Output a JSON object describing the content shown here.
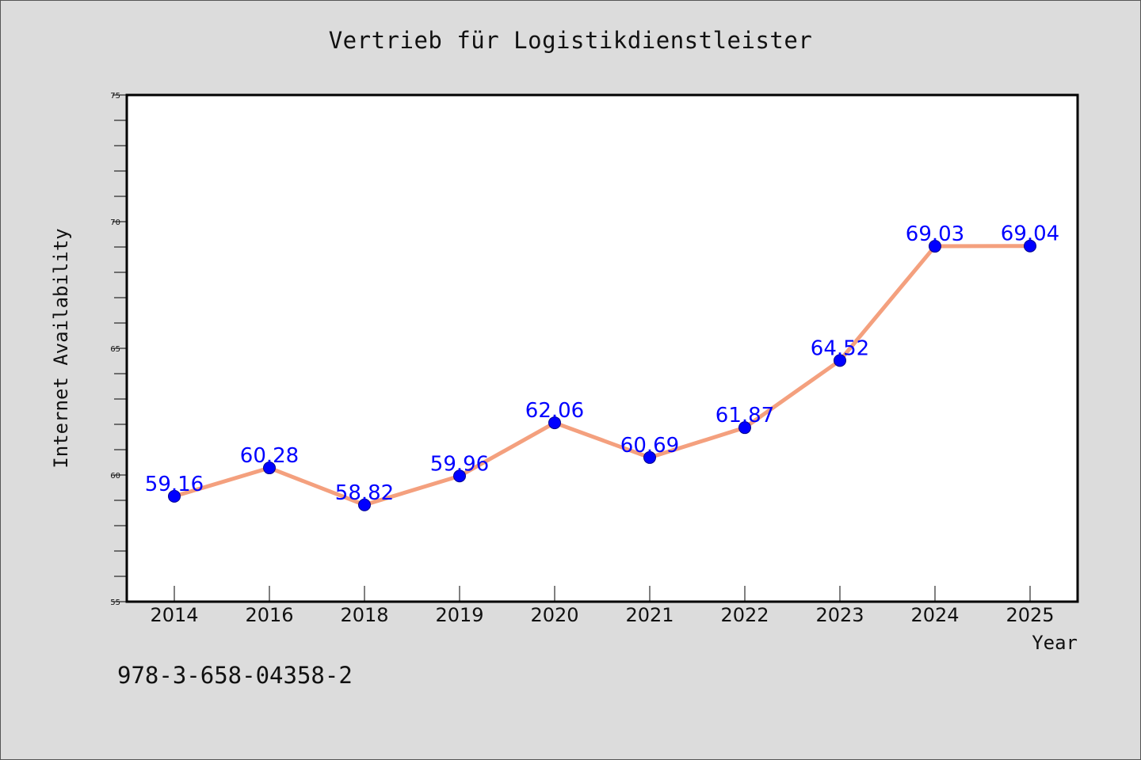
{
  "chart_data": {
    "type": "line",
    "title": "Vertrieb für Logistikdienstleister",
    "xlabel": "Year",
    "ylabel": "Internet Availability",
    "categories": [
      "2014",
      "2016",
      "2018",
      "2019",
      "2020",
      "2021",
      "2022",
      "2023",
      "2024",
      "2025"
    ],
    "series": [
      {
        "values": [
          59.16,
          60.28,
          58.82,
          59.96,
          62.06,
          60.69,
          61.87,
          64.52,
          69.03,
          69.04
        ],
        "color": "#f4a07e",
        "marker_color": "#0000ff"
      }
    ],
    "data_labels": [
      "59.16",
      "60.28",
      "58.82",
      "59.96",
      "62.06",
      "60.69",
      "61.87",
      "64.52",
      "69.03",
      "69.04"
    ],
    "ylim": [
      55,
      75
    ],
    "y_ticks": [
      "55",
      "60",
      "65",
      "70",
      "75"
    ],
    "grid": false,
    "legend": "none",
    "plot_background": "#ffffff",
    "page_background": "#dcdcdc",
    "data_label_color": "#0000ff"
  },
  "footer": {
    "isbn": "978-3-658-04358-2"
  }
}
